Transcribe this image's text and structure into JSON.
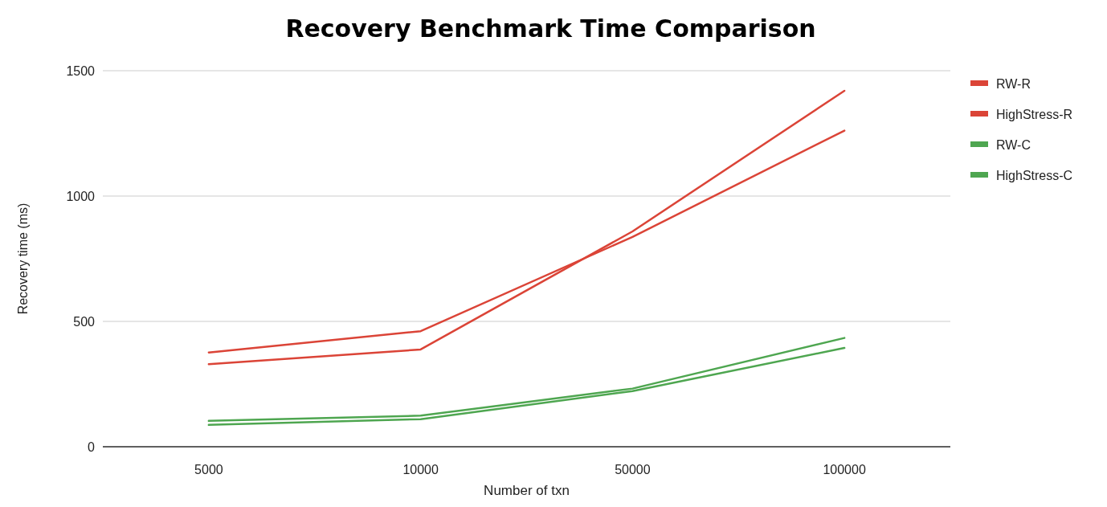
{
  "chart_data": {
    "type": "line",
    "title": "Recovery Benchmark Time Comparison",
    "xlabel": "Number of txn",
    "ylabel": "Recovery time (ms)",
    "categories": [
      "5000",
      "10000",
      "50000",
      "100000"
    ],
    "series": [
      {
        "name": "RW-R",
        "color": "#db4437",
        "values": [
          376,
          461,
          837,
          1261
        ]
      },
      {
        "name": "HighStress-R",
        "color": "#db4437",
        "values": [
          329,
          388,
          859,
          1420
        ]
      },
      {
        "name": "RW-C",
        "color": "#4ea650",
        "values": [
          103,
          124,
          232,
          434
        ]
      },
      {
        "name": "HighStress-C",
        "color": "#4ea650",
        "values": [
          87,
          110,
          222,
          394
        ]
      }
    ],
    "ylim": [
      0,
      1500
    ],
    "yticks": [
      0,
      500,
      1000,
      1500
    ],
    "grid": "y",
    "legend": "top right",
    "marker": "none",
    "line_style": "solid"
  }
}
